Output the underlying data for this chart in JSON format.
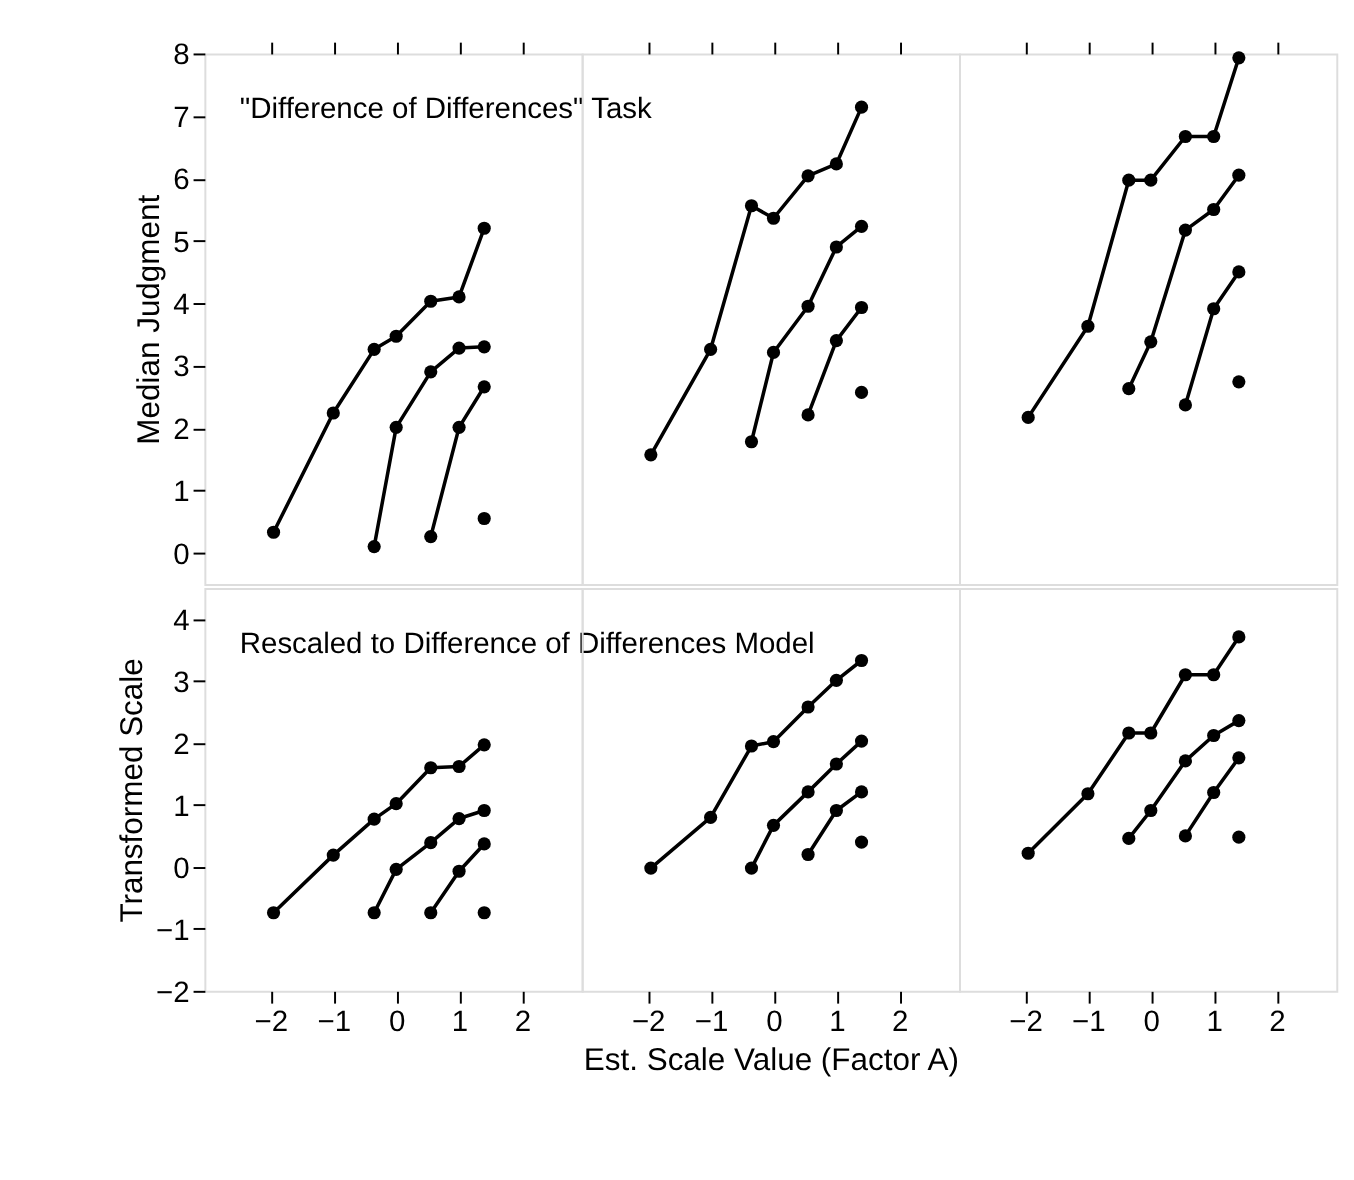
{
  "chart_data": [
    {
      "type": "line",
      "annotations": [
        "\"Difference of Differences\" Task"
      ],
      "ylabel": "Median Judgment",
      "xlim": [
        -3.05,
        2.95
      ],
      "ylim": [
        -0.5,
        8
      ],
      "xticks": [
        -2,
        -1,
        0,
        1,
        2
      ],
      "yticks": [
        0,
        1,
        2,
        3,
        4,
        5,
        6,
        7,
        8
      ],
      "tick_labels": "y",
      "marker": "circle",
      "line_style": "solid",
      "grid": false,
      "series": [
        {
          "color": "#000000",
          "x": [
            -1.95,
            -1,
            -0.35,
            0,
            0.55,
            1,
            1.4
          ],
          "values": [
            0.33,
            2.24,
            3.26,
            3.47,
            4.03,
            4.1,
            5.2
          ]
        },
        {
          "color": "#000000",
          "x": [
            -0.35,
            0,
            0.55,
            1,
            1.4
          ],
          "values": [
            0.1,
            2.01,
            2.9,
            3.28,
            3.3
          ]
        },
        {
          "color": "#000000",
          "x": [
            0.55,
            1,
            1.4
          ],
          "values": [
            0.26,
            2.01,
            2.66
          ]
        },
        {
          "color": "#000000",
          "x": [
            1.4
          ],
          "values": [
            0.55
          ]
        }
      ]
    },
    {
      "type": "line",
      "xlim": [
        -3.05,
        2.95
      ],
      "ylim": [
        -0.5,
        8
      ],
      "xticks": [
        -2,
        -1,
        0,
        1,
        2
      ],
      "yticks": [
        0,
        1,
        2,
        3,
        4,
        5,
        6,
        7,
        8
      ],
      "tick_labels": false,
      "marker": "circle",
      "line_style": "solid",
      "grid": false,
      "series": [
        {
          "color": "#000000",
          "x": [
            -1.95,
            -1,
            -0.35,
            0,
            0.55,
            1,
            1.4
          ],
          "values": [
            1.57,
            3.26,
            5.56,
            5.36,
            6.04,
            6.23,
            7.14
          ]
        },
        {
          "color": "#000000",
          "x": [
            -0.35,
            0,
            0.55,
            1,
            1.4
          ],
          "values": [
            1.78,
            3.21,
            3.95,
            4.9,
            5.23
          ]
        },
        {
          "color": "#000000",
          "x": [
            0.55,
            1,
            1.4
          ],
          "values": [
            2.21,
            3.4,
            3.93
          ]
        },
        {
          "color": "#000000",
          "x": [
            1.4
          ],
          "values": [
            2.57
          ]
        }
      ]
    },
    {
      "type": "line",
      "xlim": [
        -3.05,
        2.95
      ],
      "ylim": [
        -0.5,
        8
      ],
      "xticks": [
        -2,
        -1,
        0,
        1,
        2
      ],
      "yticks": [
        0,
        1,
        2,
        3,
        4,
        5,
        6,
        7,
        8
      ],
      "tick_labels": false,
      "marker": "circle",
      "line_style": "solid",
      "grid": false,
      "series": [
        {
          "color": "#000000",
          "x": [
            -1.95,
            -1,
            -0.35,
            0,
            0.55,
            1,
            1.4
          ],
          "values": [
            2.17,
            3.63,
            5.97,
            5.97,
            6.67,
            6.67,
            7.93
          ]
        },
        {
          "color": "#000000",
          "x": [
            -0.35,
            0,
            0.55,
            1,
            1.4
          ],
          "values": [
            2.63,
            3.38,
            5.17,
            5.5,
            6.05
          ]
        },
        {
          "color": "#000000",
          "x": [
            0.55,
            1,
            1.4
          ],
          "values": [
            2.37,
            3.91,
            4.5
          ]
        },
        {
          "color": "#000000",
          "x": [
            1.4
          ],
          "values": [
            2.74
          ]
        }
      ]
    },
    {
      "type": "line",
      "annotations": [
        "Rescaled to Difference of Differences Model"
      ],
      "ylabel": "Transformed Scale",
      "xlim": [
        -3.05,
        2.95
      ],
      "ylim": [
        -2,
        4.5
      ],
      "xticks": [
        -2,
        -1,
        0,
        1,
        2
      ],
      "yticks": [
        -2,
        -1,
        0,
        1,
        2,
        3,
        4
      ],
      "marker": "circle",
      "line_style": "solid",
      "grid": false,
      "series": [
        {
          "color": "#000000",
          "x": [
            -1.95,
            -1,
            -0.35,
            0,
            0.55,
            1,
            1.4
          ],
          "values": [
            -0.74,
            0.19,
            0.77,
            1.02,
            1.6,
            1.62,
            1.97
          ]
        },
        {
          "color": "#000000",
          "x": [
            -0.35,
            0,
            0.55,
            1,
            1.4
          ],
          "values": [
            -0.74,
            -0.04,
            0.39,
            0.78,
            0.91
          ]
        },
        {
          "color": "#000000",
          "x": [
            0.55,
            1,
            1.4
          ],
          "values": [
            -0.74,
            -0.07,
            0.37
          ]
        },
        {
          "color": "#000000",
          "x": [
            1.4
          ],
          "values": [
            -0.74
          ]
        }
      ]
    },
    {
      "type": "line",
      "xlabel": "Est. Scale Value  (Factor A)",
      "xlim": [
        -3.05,
        2.95
      ],
      "ylim": [
        -2,
        4.5
      ],
      "xticks": [
        -2,
        -1,
        0,
        1,
        2
      ],
      "yticks": [
        -2,
        -1,
        0,
        1,
        2,
        3,
        4
      ],
      "tick_labels": "x",
      "marker": "circle",
      "line_style": "solid",
      "grid": false,
      "series": [
        {
          "color": "#000000",
          "x": [
            -1.95,
            -1,
            -0.35,
            0,
            0.55,
            1,
            1.4
          ],
          "values": [
            -0.02,
            0.8,
            1.95,
            2.02,
            2.58,
            3.01,
            3.33
          ]
        },
        {
          "color": "#000000",
          "x": [
            -0.35,
            0,
            0.55,
            1,
            1.4
          ],
          "values": [
            -0.02,
            0.67,
            1.21,
            1.66,
            2.03
          ]
        },
        {
          "color": "#000000",
          "x": [
            0.55,
            1,
            1.4
          ],
          "values": [
            0.2,
            0.91,
            1.21
          ]
        },
        {
          "color": "#000000",
          "x": [
            1.4
          ],
          "values": [
            0.4
          ]
        }
      ]
    },
    {
      "type": "line",
      "xlim": [
        -3.05,
        2.95
      ],
      "ylim": [
        -2,
        4.5
      ],
      "xticks": [
        -2,
        -1,
        0,
        1,
        2
      ],
      "yticks": [
        -2,
        -1,
        0,
        1,
        2,
        3,
        4
      ],
      "tick_labels": "x",
      "marker": "circle",
      "line_style": "solid",
      "grid": false,
      "series": [
        {
          "color": "#000000",
          "x": [
            -1.95,
            -1,
            -0.35,
            0,
            0.55,
            1,
            1.4
          ],
          "values": [
            0.22,
            1.18,
            2.16,
            2.16,
            3.1,
            3.1,
            3.71
          ]
        },
        {
          "color": "#000000",
          "x": [
            -0.35,
            0,
            0.55,
            1,
            1.4
          ],
          "values": [
            0.46,
            0.91,
            1.71,
            2.12,
            2.36
          ]
        },
        {
          "color": "#000000",
          "x": [
            0.55,
            1,
            1.4
          ],
          "values": [
            0.5,
            1.2,
            1.76
          ]
        },
        {
          "color": "#000000",
          "x": [
            1.4
          ],
          "values": [
            0.48
          ]
        }
      ]
    }
  ]
}
